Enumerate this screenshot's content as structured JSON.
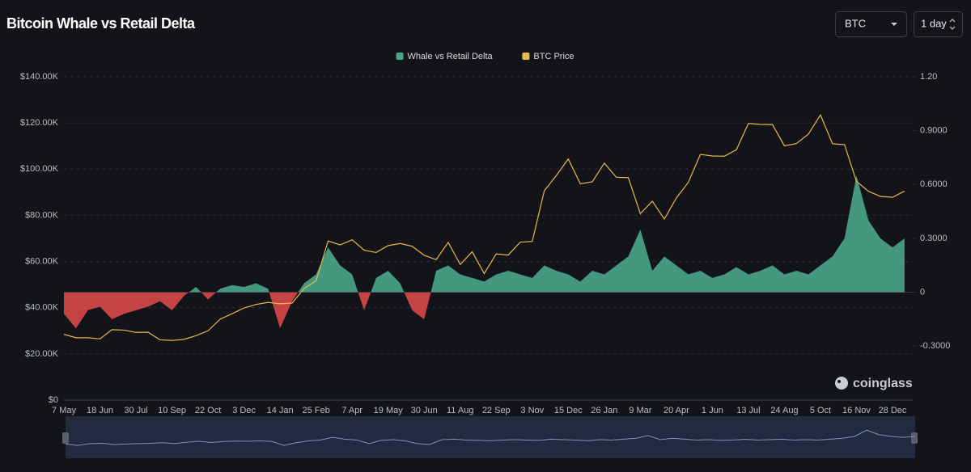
{
  "chart_data": {
    "type": "combo",
    "title": "Bitcoin Whale vs Retail Delta",
    "watermark": "coinglass",
    "categories": [
      "7 May",
      null,
      null,
      "18 Jun",
      null,
      null,
      "30 Jul",
      null,
      null,
      "10 Sep",
      null,
      null,
      "22 Oct",
      null,
      null,
      "3 Dec",
      null,
      null,
      "14 Jan",
      null,
      null,
      "25 Feb",
      null,
      null,
      "7 Apr",
      null,
      null,
      "19 May",
      null,
      null,
      "30 Jun",
      null,
      null,
      "11 Aug",
      null,
      null,
      "22 Sep",
      null,
      null,
      "3 Nov",
      null,
      null,
      "15 Dec",
      null,
      null,
      "26 Jan",
      null,
      null,
      "9 Mar",
      null,
      null,
      "20 Apr",
      null,
      null,
      "1 Jun",
      null,
      null,
      "13 Jul",
      null,
      null,
      "24 Aug",
      null,
      null,
      "5 Oct",
      null,
      null,
      "16 Nov",
      null,
      null,
      "28 Dec",
      null
    ],
    "series": [
      {
        "name": "Whale vs Retail Delta",
        "type": "area",
        "axis": "y2",
        "color": "#4aa688",
        "negative_color": "#d94848",
        "values": [
          -0.12,
          -0.2,
          -0.1,
          -0.08,
          -0.15,
          -0.12,
          -0.1,
          -0.08,
          -0.05,
          -0.1,
          -0.02,
          0.03,
          -0.04,
          0.02,
          0.04,
          0.03,
          0.05,
          0.02,
          -0.2,
          -0.05,
          0.05,
          0.1,
          0.25,
          0.15,
          0.1,
          -0.1,
          0.08,
          0.12,
          0.05,
          -0.1,
          -0.15,
          0.12,
          0.15,
          0.1,
          0.08,
          0.06,
          0.1,
          0.12,
          0.1,
          0.08,
          0.15,
          0.12,
          0.1,
          0.06,
          0.12,
          0.1,
          0.15,
          0.2,
          0.35,
          0.12,
          0.2,
          0.15,
          0.1,
          0.12,
          0.08,
          0.1,
          0.14,
          0.1,
          0.12,
          0.15,
          0.1,
          0.12,
          0.1,
          0.15,
          0.2,
          0.3,
          0.65,
          0.4,
          0.3,
          0.25,
          0.3
        ]
      },
      {
        "name": "BTC Price",
        "type": "line",
        "axis": "y",
        "color": "#e8b84a",
        "values": [
          28500,
          27000,
          27000,
          26500,
          30500,
          30300,
          29300,
          29400,
          26100,
          25800,
          26300,
          27900,
          30000,
          35000,
          37400,
          39900,
          41400,
          42300,
          41700,
          42000,
          48300,
          51700,
          68900,
          67200,
          69400,
          64900,
          63900,
          66900,
          67800,
          66600,
          62700,
          60800,
          68300,
          58700,
          64200,
          54800,
          63300,
          62800,
          68400,
          68700,
          90600,
          97200,
          104400,
          93700,
          94500,
          102600,
          96500,
          96300,
          80700,
          86100,
          78400,
          87500,
          94300,
          106400,
          105700,
          105600,
          108400,
          119800,
          119400,
          119300,
          110100,
          111100,
          115200,
          123500,
          111000,
          110600,
          94700,
          90400,
          88200,
          87800,
          90500
        ]
      }
    ],
    "ylim": [
      0,
      140000
    ],
    "yticks": [
      {
        "value": 0,
        "label": "$0"
      },
      {
        "value": 20000,
        "label": "$20.00K"
      },
      {
        "value": 40000,
        "label": "$40.00K"
      },
      {
        "value": 60000,
        "label": "$60.00K"
      },
      {
        "value": 80000,
        "label": "$80.00K"
      },
      {
        "value": 100000,
        "label": "$100.00K"
      },
      {
        "value": 120000,
        "label": "$120.00K"
      },
      {
        "value": 140000,
        "label": "$140.00K"
      }
    ],
    "y2lim": [
      -0.6,
      1.2
    ],
    "y2ticks": [
      {
        "value": -0.3,
        "label": "-0.3000"
      },
      0,
      {
        "value": 0.3,
        "label": "0.3000"
      },
      {
        "value": 0.6,
        "label": "0.6000"
      },
      {
        "value": 0.9,
        "label": "0.9000"
      },
      {
        "value": 1.2,
        "label": "1.20"
      }
    ],
    "grid": true,
    "legend": "top"
  },
  "controls": {
    "asset": "BTC",
    "interval": "1 day"
  }
}
